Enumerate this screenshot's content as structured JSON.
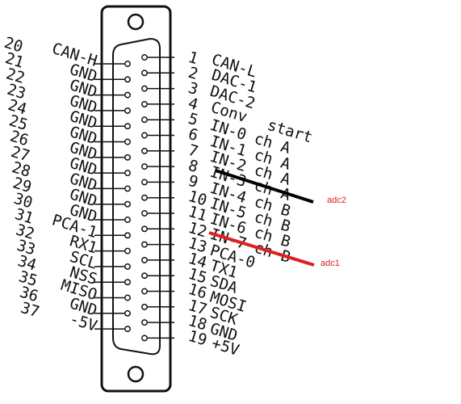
{
  "connector": {
    "left_pins": [
      {
        "num": "20",
        "label": "CAN-H"
      },
      {
        "num": "21",
        "label": "GND"
      },
      {
        "num": "22",
        "label": "GND"
      },
      {
        "num": "23",
        "label": "GND"
      },
      {
        "num": "24",
        "label": "GND"
      },
      {
        "num": "25",
        "label": "GND"
      },
      {
        "num": "26",
        "label": "GND"
      },
      {
        "num": "27",
        "label": "GND"
      },
      {
        "num": "28",
        "label": "GND"
      },
      {
        "num": "29",
        "label": "GND"
      },
      {
        "num": "30",
        "label": "GND"
      },
      {
        "num": "31",
        "label": "PCA-1"
      },
      {
        "num": "32",
        "label": "RX1"
      },
      {
        "num": "33",
        "label": "SCL"
      },
      {
        "num": "34",
        "label": "NSS"
      },
      {
        "num": "35",
        "label": "MISO"
      },
      {
        "num": "36",
        "label": "GND"
      },
      {
        "num": "37",
        "label": "-5V"
      }
    ],
    "right_pins": [
      {
        "num": "1",
        "label": "CAN-L"
      },
      {
        "num": "2",
        "label": "DAC-1"
      },
      {
        "num": "3",
        "label": "DAC-2"
      },
      {
        "num": "4",
        "label": "Conv"
      },
      {
        "num": "5",
        "label": "start"
      },
      {
        "num": "6",
        "label": "IN-0 ch A"
      },
      {
        "num": "7",
        "label": "IN-1 ch A"
      },
      {
        "num": "8",
        "label": "IN-2 ch A"
      },
      {
        "num": "9",
        "label": "IN-3 ch A"
      },
      {
        "num": "10",
        "label": "IN-4 ch B"
      },
      {
        "num": "11",
        "label": "IN-5 ch B"
      },
      {
        "num": "12",
        "label": "IN-6 ch B"
      },
      {
        "num": "13",
        "label": "IN-7 ch B"
      },
      {
        "num": "14",
        "label": "PCA-0"
      },
      {
        "num": "15",
        "label": "TX1"
      },
      {
        "num": "16",
        "label": "SDA"
      },
      {
        "num": "17",
        "label": "MOSI"
      },
      {
        "num": "18",
        "label": "SCK"
      },
      {
        "num": "19",
        "label": "GND"
      },
      {
        "num": "",
        "label": "+5V"
      }
    ]
  },
  "annotations": {
    "adc2": {
      "label": "adc2",
      "color": "#000000"
    },
    "adc1": {
      "label": "adc1",
      "color": "#e02020"
    }
  },
  "colors": {
    "outline": "#111111",
    "accent_red": "#e02020",
    "background": "#ffffff"
  }
}
